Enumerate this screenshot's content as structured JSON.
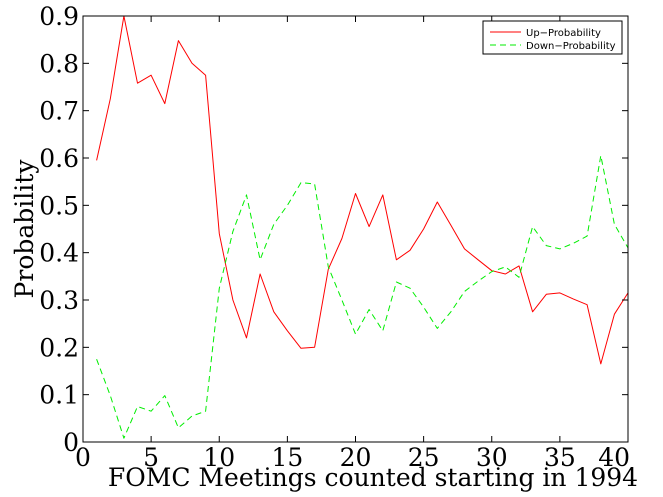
{
  "chart_data": {
    "type": "line",
    "xlabel": "FOMC Meetings counted starting in 1994",
    "ylabel": "Probability",
    "xlim": [
      0,
      40
    ],
    "ylim": [
      0,
      0.9
    ],
    "x_ticks": [
      "0",
      "5",
      "10",
      "15",
      "20",
      "25",
      "30",
      "35",
      "40"
    ],
    "y_ticks": [
      "0",
      "0.1",
      "0.2",
      "0.3",
      "0.4",
      "0.5",
      "0.6",
      "0.7",
      "0.8",
      "0.9"
    ],
    "grid": false,
    "legend_position": "top-right",
    "x": [
      1,
      2,
      3,
      4,
      5,
      6,
      7,
      8,
      9,
      10,
      11,
      12,
      13,
      14,
      15,
      16,
      17,
      18,
      19,
      20,
      21,
      22,
      23,
      24,
      25,
      26,
      27,
      28,
      29,
      30,
      31,
      32,
      33,
      34,
      35,
      36,
      37,
      38,
      39,
      40
    ],
    "series": [
      {
        "name": "Up−Probability",
        "color": "#ff0000",
        "style": "solid",
        "values": [
          0.595,
          0.725,
          0.9,
          0.758,
          0.775,
          0.715,
          0.848,
          0.8,
          0.775,
          0.44,
          0.3,
          0.22,
          0.355,
          0.275,
          0.235,
          0.198,
          0.2,
          0.365,
          0.43,
          0.525,
          0.455,
          0.522,
          0.385,
          0.405,
          0.45,
          0.507,
          0.458,
          0.408,
          0.385,
          0.362,
          0.355,
          0.372,
          0.275,
          0.312,
          0.315,
          0.302,
          0.29,
          0.165,
          0.27,
          0.315
        ]
      },
      {
        "name": "Down−Probability",
        "color": "#00ee00",
        "style": "dashed",
        "values": [
          0.175,
          0.098,
          0.008,
          0.075,
          0.065,
          0.098,
          0.03,
          0.055,
          0.065,
          0.325,
          0.445,
          0.522,
          0.385,
          0.46,
          0.5,
          0.548,
          0.545,
          0.37,
          0.3,
          0.228,
          0.28,
          0.235,
          0.338,
          0.325,
          0.285,
          0.24,
          0.275,
          0.318,
          0.34,
          0.36,
          0.37,
          0.348,
          0.455,
          0.415,
          0.408,
          0.42,
          0.435,
          0.605,
          0.46,
          0.41
        ]
      }
    ]
  }
}
